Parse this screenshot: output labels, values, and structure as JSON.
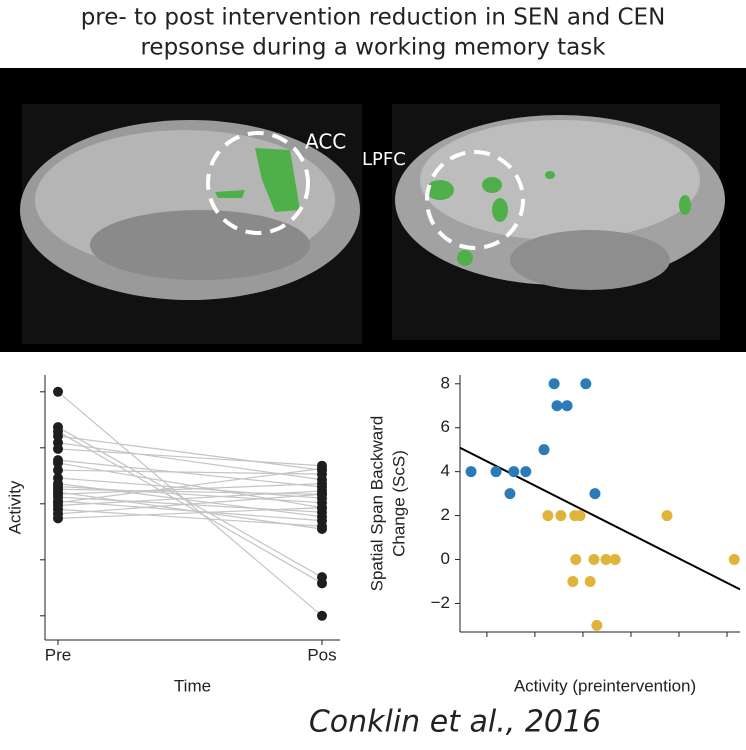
{
  "title": [
    "pre- to post intervention reduction in SEN and CEN",
    "repsonse during a  working memory task"
  ],
  "image_labels": [
    "ACC",
    "LPFC"
  ],
  "citation": "Conklin et al., 2016",
  "chart_data": [
    {
      "type": "slope",
      "categories": [
        "Pre",
        "Pos"
      ],
      "xlabel": "Time",
      "ylabel": "Activity",
      "ylim": [
        -0.2,
        4.3
      ],
      "yticks": [
        0,
        1,
        2,
        3,
        4
      ],
      "line_color": "#c4c4c4",
      "marker_color": "#1e1e1e",
      "series": [
        {
          "values": [
            4.0,
            0
          ]
        },
        {
          "values": [
            3.37,
            0.69
          ]
        },
        {
          "values": [
            3.29,
            0.58
          ]
        },
        {
          "values": [
            3.21,
            2.6
          ]
        },
        {
          "values": [
            3.09,
            2.43
          ]
        },
        {
          "values": [
            2.98,
            2.68
          ]
        },
        {
          "values": [
            2.78,
            2.3
          ]
        },
        {
          "values": [
            2.73,
            1.93
          ]
        },
        {
          "values": [
            2.6,
            2.53
          ]
        },
        {
          "values": [
            2.46,
            2.1
          ]
        },
        {
          "values": [
            2.36,
            1.77
          ]
        },
        {
          "values": [
            2.31,
            2.02
          ]
        },
        {
          "values": [
            2.26,
            2.17
          ]
        },
        {
          "values": [
            2.21,
            1.55
          ]
        },
        {
          "values": [
            2.17,
            2.36
          ]
        },
        {
          "values": [
            2.12,
            1.85
          ]
        },
        {
          "values": [
            2.05,
            1.7
          ]
        },
        {
          "values": [
            1.97,
            2.23
          ]
        },
        {
          "values": [
            1.9,
            1.6
          ]
        },
        {
          "values": [
            1.82,
            2.17
          ]
        },
        {
          "values": [
            1.74,
            1.93
          ]
        },
        {
          "values": [
            2.02,
            2.63
          ]
        }
      ]
    },
    {
      "type": "scatter",
      "xlabel": "Activity (preintervention)",
      "ylabel": [
        "Spatial Span Backward",
        "Change (ScS)"
      ],
      "xlim": [
        0.44,
        6.27
      ],
      "xticks": [
        1,
        2,
        3,
        4,
        5,
        6
      ],
      "ylim": [
        -3.3,
        8.4
      ],
      "yticks": [
        {
          "value": -2,
          "label": "−2"
        },
        0,
        2,
        4,
        6,
        8
      ],
      "series": [
        {
          "color": "#2b7bb9",
          "x": [
            0.67,
            1.19,
            1.48,
            1.56,
            1.81,
            2.19,
            2.4,
            2.46,
            2.67,
            3.06,
            3.25
          ],
          "y": [
            4,
            4,
            3,
            4,
            4,
            5,
            8,
            7,
            7,
            8,
            3
          ]
        },
        {
          "color": "#e0b43a",
          "x": [
            2.27,
            2.54,
            2.83,
            2.94,
            2.85,
            3.23,
            3.48,
            3.67,
            2.79,
            3.15,
            3.29,
            4.75,
            6.15
          ],
          "y": [
            2,
            2,
            2,
            2,
            0,
            0,
            0,
            0,
            -1,
            -1,
            -3,
            2,
            0
          ]
        }
      ],
      "trend_line": {
        "color": "#000000",
        "x": [
          0.44,
          6.27
        ],
        "y": [
          5.09,
          -1.36
        ]
      }
    }
  ]
}
